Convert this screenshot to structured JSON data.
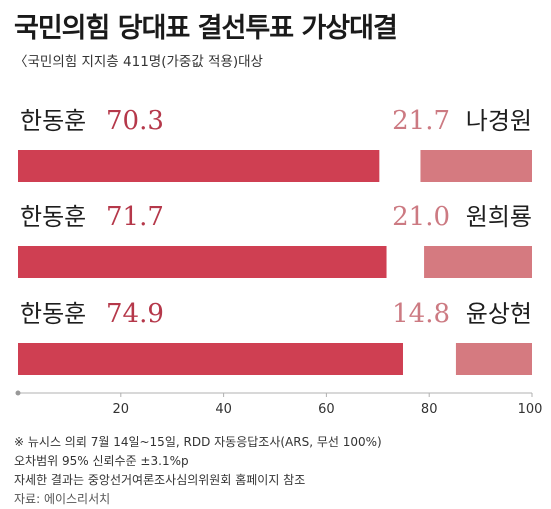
{
  "title": "국민의힘 당대표 결선투표 가상대결",
  "subtitle": "〈국민의힘 지지층 411명(가중값 적용)대상",
  "chart_data": {
    "type": "bar",
    "orientation": "horizontal",
    "stacked": true,
    "categories": [
      "한동훈 vs 나경원",
      "한동훈 vs 원희룡",
      "한동훈 vs 윤상현"
    ],
    "series": [
      {
        "labels": [
          "한동훈",
          "한동훈",
          "한동훈"
        ],
        "values": [
          70.3,
          71.7,
          74.9
        ],
        "color": "#cf3f52",
        "value_color": "#b5384a",
        "anchor": "left"
      },
      {
        "labels": [
          "나경원",
          "원희룡",
          "윤상현"
        ],
        "values": [
          21.7,
          21.0,
          14.8
        ],
        "color": "#d57a80",
        "value_color": "#cc7a82",
        "anchor": "right"
      }
    ],
    "value_labels": [
      [
        "70.3",
        "71.7",
        "74.9"
      ],
      [
        "21.7",
        "21.0",
        "14.8"
      ]
    ],
    "xlim": [
      0,
      100
    ],
    "xticks": [
      20,
      40,
      60,
      80,
      100
    ],
    "grid": false
  },
  "footer": {
    "note1": "※ 뉴시스 의뢰 7월 14일~15일, RDD 자동응답조사(ARS, 무선 100%)",
    "note2": "오차범위 95% 신뢰수준 ±3.1%p",
    "note3": "자세한 결과는 중앙선거여론조사심의위원회 홈페이지 참조",
    "source": "자료: 에이스리서치"
  }
}
